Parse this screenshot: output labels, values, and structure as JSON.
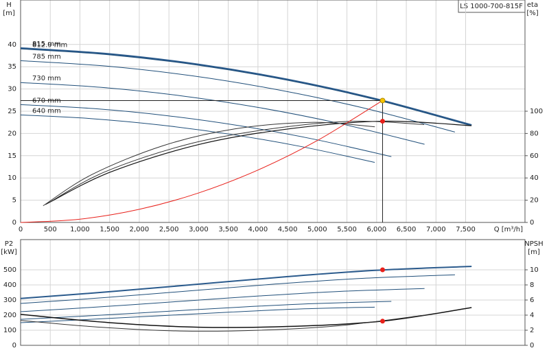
{
  "chart_data": [
    {
      "type": "line",
      "title": "LS 1000-700-815F",
      "y_label": "H",
      "y_unit": "[m]",
      "y2_label": "eta",
      "y2_unit": "[%]",
      "x_label": "Q [m³/h]",
      "xlim": [
        0,
        8500
      ],
      "xticks": [
        0,
        500,
        {
          "value": 1000,
          "label": "1,000"
        },
        {
          "value": 1500,
          "label": "1,500"
        },
        {
          "value": 2000,
          "label": "2,000"
        },
        {
          "value": 2500,
          "label": "2,500"
        },
        {
          "value": 3000,
          "label": "3,000"
        },
        {
          "value": 3500,
          "label": "3,500"
        },
        {
          "value": 4000,
          "label": "4,000"
        },
        {
          "value": 4500,
          "label": "4,500"
        },
        {
          "value": 5000,
          "label": "5,000"
        },
        {
          "value": 5500,
          "label": "5,500"
        },
        {
          "value": 6000,
          "label": "6,000"
        },
        {
          "value": 6500,
          "label": "6,500"
        },
        {
          "value": 7000,
          "label": "7,000"
        },
        {
          "value": 7500,
          "label": "7,500"
        }
      ],
      "ylim": [
        0,
        50
      ],
      "yticks": [
        0,
        5,
        10,
        15,
        20,
        25,
        30,
        35,
        40
      ],
      "y2lim": [
        0,
        200
      ],
      "y2ticks": [
        0,
        20,
        40,
        60,
        80,
        100
      ],
      "grid": true,
      "series": [
        {
          "name": "815 mm",
          "color": "#2a5a8c",
          "width": 2.2,
          "x": [
            0,
            1500,
            3000,
            4500,
            6000,
            7600
          ],
          "values": [
            39.2,
            37.87,
            35.52,
            32.14,
            27.73,
            21.9
          ]
        },
        {
          "name": "812.9 mm",
          "color": "#1f4e79",
          "width": 1,
          "x": [
            0,
            1496,
            2992,
            4488,
            5984,
            7580
          ],
          "values": [
            39.0,
            37.68,
            35.34,
            31.98,
            27.59,
            21.79
          ]
        },
        {
          "name": "785 mm",
          "color": "#1f4e79",
          "width": 1,
          "x": [
            0,
            1445,
            2890,
            4334,
            5779,
            7320
          ],
          "values": [
            36.37,
            35.14,
            32.96,
            29.82,
            25.73,
            20.32
          ]
        },
        {
          "name": "730 mm",
          "color": "#1f4e79",
          "width": 1,
          "x": [
            0,
            1344,
            2687,
            4031,
            5374,
            6807
          ],
          "values": [
            31.45,
            30.38,
            28.5,
            25.79,
            22.25,
            17.57
          ]
        },
        {
          "name": "670 mm",
          "color": "#1f4e79",
          "width": 1,
          "x": [
            0,
            1233,
            2466,
            3699,
            4933,
            6248
          ],
          "values": [
            26.49,
            25.59,
            24.0,
            21.72,
            18.74,
            14.8
          ]
        },
        {
          "name": "640 mm",
          "color": "#1f4e79",
          "width": 1,
          "x": [
            0,
            1178,
            2356,
            3534,
            4712,
            5968
          ],
          "values": [
            24.17,
            23.35,
            21.9,
            19.82,
            17.1,
            13.51
          ]
        },
        {
          "axis": "y2",
          "color": "#111111",
          "width": 1.2,
          "x": [
            450,
            1500,
            3000,
            4500,
            6100,
            7600
          ],
          "values": [
            17,
            45,
            70,
            84,
            91,
            87
          ]
        },
        {
          "axis": "y2",
          "color": "#333333",
          "width": 1,
          "x": [
            420,
            1400,
            2800,
            4200,
            5600,
            6800
          ],
          "values": [
            16,
            45,
            70,
            84,
            91,
            88
          ]
        },
        {
          "axis": "y2",
          "color": "#333333",
          "width": 1,
          "x": [
            380,
            1200,
            2400,
            3600,
            4900,
            5970
          ],
          "values": [
            15,
            43,
            69,
            84,
            90,
            86
          ]
        },
        {
          "color": "#e8201a",
          "width": 1,
          "x": [
            0,
            1000,
            2000,
            3000,
            4000,
            5000,
            6100
          ],
          "values": [
            0,
            0.74,
            2.95,
            6.63,
            11.78,
            18.41,
            27.4
          ]
        }
      ],
      "markers": [
        {
          "x": 6100,
          "y": 27.4,
          "color": "#f5c400",
          "guides": true
        },
        {
          "x": 6100,
          "y": 91,
          "axis": "y2",
          "color": "#e8201a"
        }
      ]
    },
    {
      "type": "line",
      "y_label": "P2",
      "y_unit": "[kW]",
      "y2_label": "NPSH",
      "y2_unit": "[m]",
      "xlim": [
        0,
        8500
      ],
      "ylim": [
        0,
        700
      ],
      "yticks": [
        0,
        100,
        200,
        300,
        400,
        500
      ],
      "y2lim": [
        0,
        14
      ],
      "y2ticks": [
        0,
        2,
        4,
        6,
        8,
        10
      ],
      "grid": true,
      "series": [
        {
          "color": "#2a5a8c",
          "width": 2,
          "x": [
            0,
            1500,
            3000,
            4500,
            6000,
            7600
          ],
          "values": [
            310,
            355,
            405,
            455,
            497,
            523
          ]
        },
        {
          "color": "#1f4e79",
          "width": 1,
          "x": [
            0,
            1445,
            2890,
            4334,
            5779,
            7320
          ],
          "values": [
            277,
            317,
            362,
            407,
            444,
            467
          ]
        },
        {
          "color": "#1f4e79",
          "width": 1,
          "x": [
            0,
            1344,
            2687,
            4031,
            5374,
            6807
          ],
          "values": [
            223,
            255,
            291,
            327,
            357,
            376
          ]
        },
        {
          "color": "#1f4e79",
          "width": 1,
          "x": [
            0,
            1233,
            2466,
            3699,
            4933,
            6248
          ],
          "values": [
            172,
            197,
            225,
            253,
            276,
            291
          ]
        },
        {
          "color": "#1f4e79",
          "width": 1,
          "x": [
            0,
            1178,
            2356,
            3534,
            4712,
            5968
          ],
          "values": [
            150,
            172,
            196,
            220,
            241,
            253
          ]
        },
        {
          "axis": "y2",
          "color": "#111111",
          "width": 1.5,
          "x": [
            0,
            1500,
            3000,
            4500,
            6100,
            7600
          ],
          "values": [
            4.1,
            3.0,
            2.4,
            2.5,
            3.2,
            5.0
          ]
        },
        {
          "axis": "y2",
          "color": "#333333",
          "width": 1,
          "x": [
            0,
            1344,
            2687,
            4031,
            5374,
            6807
          ],
          "values": [
            3.3,
            2.4,
            1.9,
            2.0,
            2.6,
            4.0
          ]
        }
      ],
      "markers": [
        {
          "x": 6100,
          "y": 500,
          "color": "#e8201a"
        },
        {
          "x": 6100,
          "y": 3.2,
          "axis": "y2",
          "color": "#e8201a"
        }
      ]
    }
  ]
}
